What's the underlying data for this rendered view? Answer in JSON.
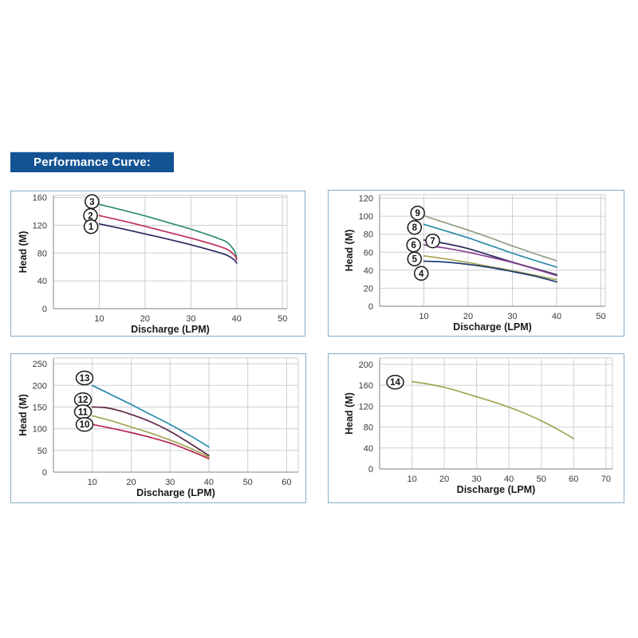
{
  "header": {
    "title": "Performance Curve:",
    "bg_color": "#135394",
    "text_color": "#ffffff"
  },
  "chart_style": {
    "panel_border_color": "#85aec9",
    "grid_color": "#cccfd3",
    "axis_color": "#9a9a9a",
    "tick_text_color": "#3a3a3a",
    "axis_label_color": "#1a1a1a",
    "curve_label_circle_fill": "#ffffff",
    "curve_label_circle_stroke": "#1a1a1a",
    "curve_label_text_color": "#111111"
  },
  "chart_data": [
    {
      "type": "line",
      "position": "top-left",
      "title": "",
      "xlabel": "Discharge (LPM)",
      "ylabel": "Head (M)",
      "xlim": [
        0,
        51
      ],
      "ylim": [
        0,
        163
      ],
      "xticks": [
        10,
        20,
        30,
        40,
        50
      ],
      "yticks": [
        0,
        40,
        80,
        120,
        160
      ],
      "grid": true,
      "legend": "none",
      "series": [
        {
          "name": "3",
          "color": "#2e8e6b",
          "label_pos": [
            8.4,
            154
          ],
          "points": [
            [
              10,
              150
            ],
            [
              15,
              142
            ],
            [
              20,
              133.5
            ],
            [
              25,
              124
            ],
            [
              30,
              114.5
            ],
            [
              33,
              108
            ],
            [
              36,
              101
            ],
            [
              38,
              95
            ],
            [
              39.5,
              83
            ],
            [
              40,
              73
            ]
          ]
        },
        {
          "name": "2",
          "color": "#c22e5a",
          "label_pos": [
            8.1,
            134
          ],
          "points": [
            [
              10,
              134
            ],
            [
              15,
              126.5
            ],
            [
              20,
              118.5
            ],
            [
              25,
              110
            ],
            [
              30,
              101.5
            ],
            [
              33,
              96
            ],
            [
              36,
              90
            ],
            [
              38,
              85
            ],
            [
              39.5,
              77
            ],
            [
              40,
              70.5
            ]
          ]
        },
        {
          "name": "1",
          "color": "#29295c",
          "label_pos": [
            8.2,
            118
          ],
          "points": [
            [
              10,
              122
            ],
            [
              15,
              115
            ],
            [
              20,
              107.5
            ],
            [
              25,
              100
            ],
            [
              30,
              92
            ],
            [
              33,
              86.5
            ],
            [
              36,
              81
            ],
            [
              38,
              76.5
            ],
            [
              39.5,
              70
            ],
            [
              40,
              65.5
            ]
          ]
        }
      ]
    },
    {
      "type": "line",
      "position": "top-right",
      "title": "",
      "xlabel": "Discharge (LPM)",
      "ylabel": "Head (M)",
      "xlim": [
        0,
        51
      ],
      "ylim": [
        0,
        124
      ],
      "xticks": [
        10,
        20,
        30,
        40,
        50
      ],
      "yticks": [
        0,
        20,
        40,
        60,
        80,
        100,
        120
      ],
      "grid": true,
      "legend": "none",
      "series": [
        {
          "name": "9",
          "color": "#8f9e85",
          "label_pos": [
            8.6,
            103.5
          ],
          "points": [
            [
              10,
              100.5
            ],
            [
              15,
              92.5
            ],
            [
              20,
              84.5
            ],
            [
              25,
              76
            ],
            [
              30,
              67
            ],
            [
              35,
              58.5
            ],
            [
              40,
              50.5
            ]
          ]
        },
        {
          "name": "8",
          "color": "#2d8aab",
          "label_pos": [
            7.9,
            87.5
          ],
          "points": [
            [
              10,
              91
            ],
            [
              15,
              83.5
            ],
            [
              20,
              76
            ],
            [
              25,
              67.5
            ],
            [
              30,
              59
            ],
            [
              35,
              51
            ],
            [
              40,
              43.5
            ]
          ]
        },
        {
          "name": "7",
          "color": "#2a2a5a",
          "label_pos": [
            12,
            72.5
          ],
          "points": [
            [
              10,
              73.5
            ],
            [
              15,
              69.5
            ],
            [
              20,
              64
            ],
            [
              25,
              56.5
            ],
            [
              30,
              49
            ],
            [
              35,
              42
            ],
            [
              40,
              35
            ]
          ]
        },
        {
          "name": "6",
          "color": "#85418f",
          "label_pos": [
            7.7,
            68
          ],
          "points": [
            [
              10,
              68
            ],
            [
              15,
              64.5
            ],
            [
              20,
              60
            ],
            [
              25,
              54.5
            ],
            [
              30,
              48.5
            ],
            [
              35,
              41.5
            ],
            [
              40,
              34
            ]
          ]
        },
        {
          "name": "5",
          "color": "#a3a455",
          "label_pos": [
            7.9,
            52.5
          ],
          "points": [
            [
              10,
              56
            ],
            [
              15,
              52.5
            ],
            [
              20,
              48.5
            ],
            [
              25,
              44
            ],
            [
              30,
              39.5
            ],
            [
              35,
              34.5
            ],
            [
              40,
              29.5
            ]
          ]
        },
        {
          "name": "4",
          "color": "#1f3e73",
          "label_pos": [
            9.4,
            36.5
          ],
          "points": [
            [
              10,
              50
            ],
            [
              13,
              49.6
            ],
            [
              16,
              48.6
            ],
            [
              20,
              46.5
            ],
            [
              25,
              43
            ],
            [
              30,
              38.5
            ],
            [
              35,
              33.5
            ],
            [
              40,
              27
            ]
          ]
        }
      ]
    },
    {
      "type": "line",
      "position": "bottom-left",
      "title": "",
      "xlabel": "Discharge (LPM)",
      "ylabel": "Head (M)",
      "xlim": [
        0,
        63
      ],
      "ylim": [
        0,
        263
      ],
      "xticks": [
        10,
        20,
        30,
        40,
        50,
        60
      ],
      "yticks": [
        0,
        50,
        100,
        150,
        200,
        250
      ],
      "grid": true,
      "legend": "none",
      "series": [
        {
          "name": "13",
          "color": "#2d8aab",
          "label_pos": [
            8,
            217
          ],
          "points": [
            [
              10,
              200
            ],
            [
              15,
              178
            ],
            [
              20,
              156
            ],
            [
              25,
              133
            ],
            [
              30,
              110
            ],
            [
              35,
              85
            ],
            [
              40,
              58
            ]
          ]
        },
        {
          "name": "12",
          "color": "#5e2546",
          "label_pos": [
            7.6,
            167
          ],
          "points": [
            [
              10,
              150
            ],
            [
              13,
              149
            ],
            [
              16,
              144
            ],
            [
              20,
              133
            ],
            [
              25,
              116
            ],
            [
              30,
              94
            ],
            [
              35,
              67
            ],
            [
              40,
              38
            ]
          ]
        },
        {
          "name": "11",
          "color": "#a3a455",
          "label_pos": [
            7.6,
            139
          ],
          "points": [
            [
              10,
              130
            ],
            [
              15,
              118
            ],
            [
              20,
              104
            ],
            [
              25,
              90
            ],
            [
              30,
              74
            ],
            [
              35,
              56
            ],
            [
              40,
              35
            ]
          ]
        },
        {
          "name": "10",
          "color": "#b52853",
          "label_pos": [
            8,
            110
          ],
          "points": [
            [
              10,
              110
            ],
            [
              15,
              101
            ],
            [
              20,
              91
            ],
            [
              25,
              80
            ],
            [
              30,
              67
            ],
            [
              35,
              50
            ],
            [
              40,
              31
            ]
          ]
        }
      ]
    },
    {
      "type": "line",
      "position": "bottom-right",
      "title": "",
      "xlabel": "Discharge (LPM)",
      "ylabel": "Head (M)",
      "xlim": [
        0,
        72
      ],
      "ylim": [
        0,
        212
      ],
      "xticks": [
        10,
        20,
        30,
        40,
        50,
        60,
        70
      ],
      "yticks": [
        0,
        40,
        80,
        120,
        160,
        200
      ],
      "grid": true,
      "legend": "none",
      "series": [
        {
          "name": "14",
          "color": "#a3a455",
          "label_pos": [
            4.8,
            166
          ],
          "points": [
            [
              10,
              167
            ],
            [
              15,
              162.5
            ],
            [
              20,
              156
            ],
            [
              25,
              147.5
            ],
            [
              30,
              138
            ],
            [
              35,
              128.5
            ],
            [
              40,
              118
            ],
            [
              45,
              106
            ],
            [
              50,
              92
            ],
            [
              55,
              76
            ],
            [
              60,
              58
            ]
          ]
        }
      ]
    }
  ]
}
